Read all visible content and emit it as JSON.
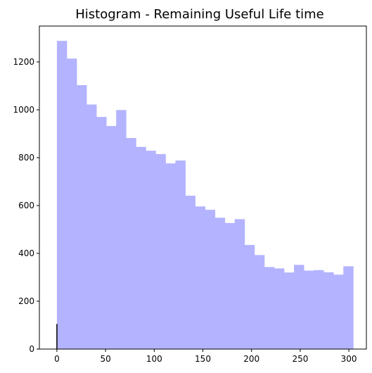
{
  "chart_data": {
    "type": "bar",
    "title": "Histogram - Remaining Useful Life time",
    "xlabel": "",
    "ylabel": "",
    "xlim": [
      -18,
      318
    ],
    "ylim": [
      0,
      1350
    ],
    "bar_color": "#b3b3ff",
    "bin_width": 10.15,
    "bin_start": 0,
    "values": [
      1288,
      1214,
      1103,
      1022,
      970,
      932,
      999,
      882,
      845,
      829,
      815,
      776,
      788,
      641,
      596,
      582,
      549,
      527,
      543,
      435,
      393,
      343,
      337,
      320,
      352,
      328,
      330,
      321,
      311,
      346
    ],
    "rug": {
      "x": 0,
      "height": 105,
      "color": "#000000"
    },
    "x_ticks": [
      0,
      50,
      100,
      150,
      200,
      250,
      300
    ],
    "y_ticks": [
      0,
      200,
      400,
      600,
      800,
      1000,
      1200
    ],
    "x_tick_labels": [
      "0",
      "50",
      "100",
      "150",
      "200",
      "250",
      "300"
    ],
    "y_tick_labels": [
      "0",
      "200",
      "400",
      "600",
      "800",
      "1000",
      "1200"
    ],
    "grid": false,
    "legend": "none"
  }
}
